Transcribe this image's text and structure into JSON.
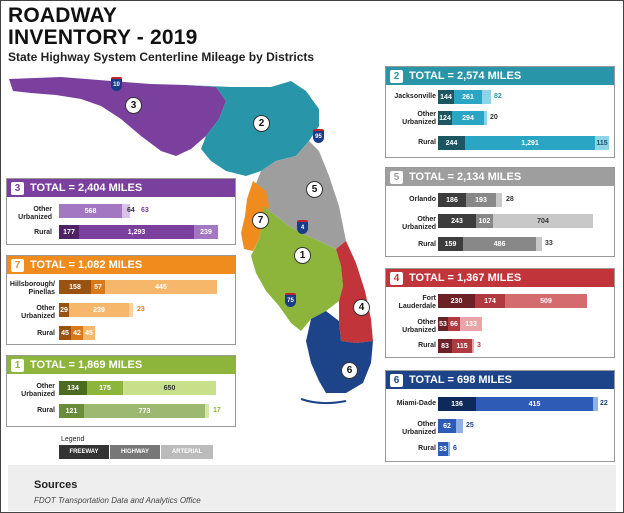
{
  "title": {
    "line1": "ROADWAY",
    "line2": "INVENTORY - 2019"
  },
  "subtitle": "State Highway System Centerline Mileage by Districts",
  "colors": {
    "d1": "#8db53c",
    "d2": "#2896a8",
    "d3": "#7b3f9e",
    "d4": "#c0343a",
    "d5": "#9e9e9e",
    "d6": "#1d4488",
    "d7": "#f08c1e"
  },
  "map": {
    "district_labels": [
      "1",
      "2",
      "3",
      "4",
      "5",
      "6",
      "7"
    ],
    "shields": [
      "10",
      "95",
      "4",
      "75"
    ]
  },
  "districts": {
    "d2": {
      "num": "2",
      "total": "TOTAL = 2,574 MILES",
      "rows": [
        {
          "label": "Jacksonville",
          "values": [
            "144",
            "261",
            "82"
          ]
        },
        {
          "label": "Other Urbanized",
          "values": [
            "124",
            "294",
            "20"
          ]
        },
        {
          "label": "Rural",
          "values": [
            "244",
            "1,291",
            "115"
          ]
        }
      ]
    },
    "d3": {
      "num": "3",
      "total": "TOTAL = 2,404 MILES",
      "rows": [
        {
          "label": "Other Urbanized",
          "values": [
            "568",
            "64",
            "63"
          ]
        },
        {
          "label": "Rural",
          "values": [
            "177",
            "1,293",
            "239"
          ]
        }
      ]
    },
    "d5": {
      "num": "5",
      "total": "TOTAL = 2,134 MILES",
      "rows": [
        {
          "label": "Orlando",
          "values": [
            "186",
            "193",
            "28"
          ]
        },
        {
          "label": "Other Urbanized",
          "values": [
            "243",
            "102",
            "704"
          ]
        },
        {
          "label": "Rural",
          "values": [
            "159",
            "486",
            "33"
          ]
        }
      ]
    },
    "d7": {
      "num": "7",
      "total": "TOTAL = 1,082 MILES",
      "rows": [
        {
          "label": "Hillsborough/ Pinellas",
          "values": [
            "158",
            "57",
            "445"
          ]
        },
        {
          "label": "Other Urbanized",
          "values": [
            "29",
            "239",
            "23"
          ]
        },
        {
          "label": "Rural",
          "values": [
            "45",
            "42",
            "45"
          ]
        }
      ]
    },
    "d4": {
      "num": "4",
      "total": "TOTAL = 1,367 MILES",
      "rows": [
        {
          "label": "Fort Lauderdale",
          "values": [
            "230",
            "174",
            "509"
          ]
        },
        {
          "label": "Other Urbanized",
          "values": [
            "53",
            "66",
            "133"
          ]
        },
        {
          "label": "Rural",
          "values": [
            "83",
            "115",
            "3"
          ]
        }
      ]
    },
    "d1": {
      "num": "1",
      "total": "TOTAL = 1,869 MILES",
      "rows": [
        {
          "label": "Other Urbanized",
          "values": [
            "134",
            "175",
            "650"
          ]
        },
        {
          "label": "Rural",
          "values": [
            "121",
            "773",
            "17"
          ]
        }
      ]
    },
    "d6": {
      "num": "6",
      "total": "TOTAL = 698 MILES",
      "rows": [
        {
          "label": "Miami-Dade",
          "values": [
            "136",
            "415",
            "22"
          ]
        },
        {
          "label": "Other Urbanized",
          "values": [
            "62",
            "25"
          ]
        },
        {
          "label": "Rural",
          "values": [
            "33",
            "6"
          ]
        }
      ]
    }
  },
  "legend": {
    "title": "Legend",
    "freeway": "FREEWAY",
    "highway": "HIGHWAY",
    "arterial": "ARTERIAL"
  },
  "sources": {
    "title": "Sources",
    "text": "FDOT Transportation Data and Analytics Office"
  }
}
